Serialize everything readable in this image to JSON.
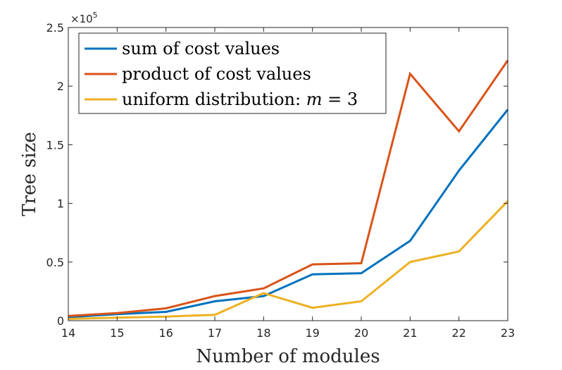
{
  "chart_data": {
    "type": "line",
    "xlabel": "Number of modules",
    "ylabel": "Tree size",
    "exponent": {
      "base": "×10",
      "power": "5"
    },
    "scale_factor": 100000,
    "xlim": [
      14,
      23
    ],
    "ylim": [
      0,
      250000
    ],
    "x_ticks": [
      14,
      15,
      16,
      17,
      18,
      19,
      20,
      21,
      22,
      23
    ],
    "y_ticks": [
      0,
      50000,
      100000,
      150000,
      200000,
      250000
    ],
    "y_tick_labels": [
      "0",
      "0.5",
      "1",
      "1.5",
      "2",
      "2.5"
    ],
    "x": [
      14,
      15,
      16,
      17,
      18,
      19,
      20,
      21,
      22,
      23
    ],
    "legend_position": "top-left",
    "grid": false,
    "series": [
      {
        "name": "sum of cost values",
        "color": "#0072BD",
        "values": [
          3000,
          5500,
          7500,
          16500,
          21000,
          39500,
          40500,
          68000,
          128000,
          180000
        ]
      },
      {
        "name": "product of cost values",
        "color": "#D95319",
        "values": [
          4000,
          6500,
          10500,
          21000,
          27500,
          48000,
          49000,
          210500,
          161500,
          222000
        ]
      },
      {
        "name": "uniform distribution: ",
        "name_math": "m = 3",
        "color": "#EDB120",
        "values": [
          1500,
          2500,
          3500,
          5000,
          23500,
          11000,
          16500,
          50000,
          59000,
          102000
        ]
      }
    ]
  }
}
